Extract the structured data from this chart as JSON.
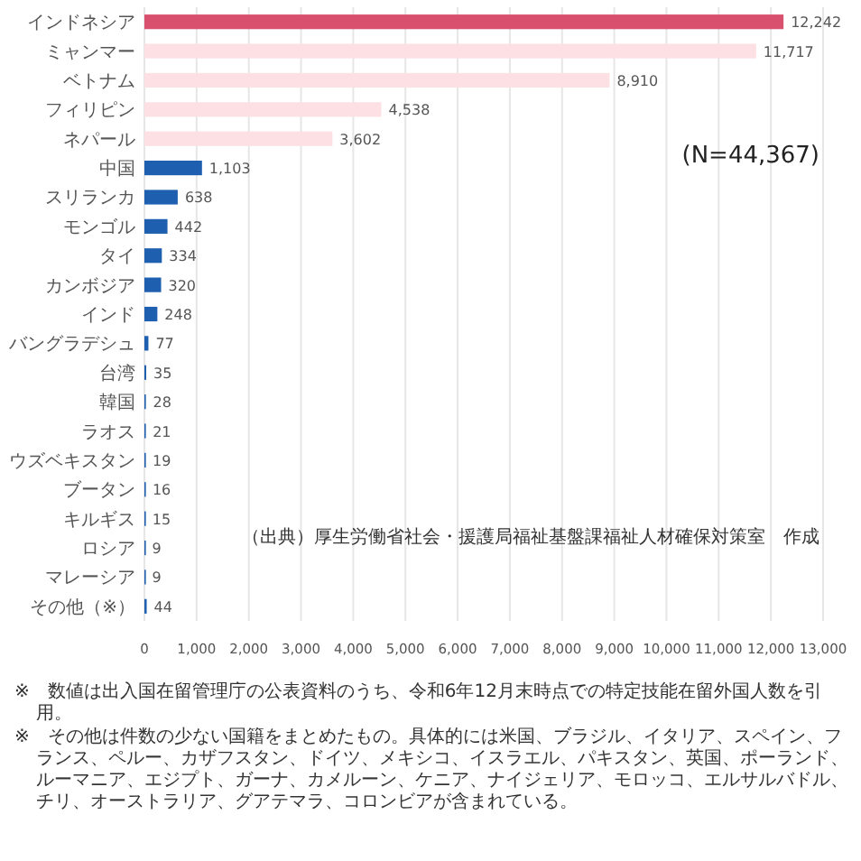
{
  "chart_data": {
    "type": "bar",
    "orientation": "horizontal",
    "categories": [
      "インドネシア",
      "ミャンマー",
      "ベトナム",
      "フィリピン",
      "ネパール",
      "中国",
      "スリランカ",
      "モンゴル",
      "タイ",
      "カンボジア",
      "インド",
      "バングラデシュ",
      "台湾",
      "韓国",
      "ラオス",
      "ウズベキスタン",
      "ブータン",
      "キルギス",
      "ロシア",
      "マレーシア",
      "その他（※）"
    ],
    "values": [
      12242,
      11717,
      8910,
      4538,
      3602,
      1103,
      638,
      442,
      334,
      320,
      248,
      77,
      35,
      28,
      21,
      19,
      16,
      15,
      9,
      9,
      44
    ],
    "value_labels": [
      "12,242",
      "11,717",
      "8,910",
      "4,538",
      "3,602",
      "1,103",
      "638",
      "442",
      "334",
      "320",
      "248",
      "77",
      "35",
      "28",
      "21",
      "19",
      "16",
      "15",
      "9",
      "9",
      "44"
    ],
    "colors": [
      "#d94f6e",
      "#fde0e4",
      "#fde0e4",
      "#fde0e4",
      "#fde0e4",
      "#1f5fb0",
      "#1f5fb0",
      "#1f5fb0",
      "#1f5fb0",
      "#1f5fb0",
      "#1f5fb0",
      "#1f5fb0",
      "#1f5fb0",
      "#1f5fb0",
      "#1f5fb0",
      "#1f5fb0",
      "#1f5fb0",
      "#1f5fb0",
      "#1f5fb0",
      "#1f5fb0",
      "#1f5fb0"
    ],
    "xlim": [
      0,
      13000
    ],
    "xticks": [
      0,
      {
        "value": 1000,
        "label": "1,000"
      },
      {
        "value": 2000,
        "label": "2,000"
      },
      {
        "value": 3000,
        "label": "3,000"
      },
      {
        "value": 4000,
        "label": "4,000"
      },
      {
        "value": 5000,
        "label": "5,000"
      },
      {
        "value": 6000,
        "label": "6,000"
      },
      {
        "value": 7000,
        "label": "7,000"
      },
      {
        "value": 8000,
        "label": "8,000"
      },
      {
        "value": 9000,
        "label": "9,000"
      },
      {
        "value": 10000,
        "label": "10,000"
      },
      {
        "value": 11000,
        "label": "11,000"
      },
      {
        "value": 12000,
        "label": "12,000"
      },
      {
        "value": 13000,
        "label": "13,000"
      }
    ],
    "grid": "x",
    "annotations": [
      "(N=44,367)",
      "（出典）厚生労働省社会・援護局福祉基盤課福祉人材確保対策室　作成",
      "※　数値は出入国在留管理庁の公表資料のうち、令和6年12月末時点での特定技能在留外国人数を引用。",
      "※　その他は件数の少ない国籍をまとめたもの。具体的には米国、ブラジル、イタリア、スペイン、フランス、ペルー、カザフスタン、ドイツ、メキシコ、イスラエル、パキスタン、英国、ポーランド、ルーマニア、エジプト、ガーナ、カメルーン、ケニア、ナイジェリア、モロッコ、エルサルバドル、チリ、オーストラリア、グアテマラ、コロンビアが含まれている。"
    ]
  }
}
